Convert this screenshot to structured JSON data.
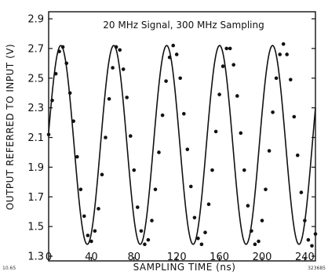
{
  "figure": {
    "corner_left": "10.65",
    "corner_right": "323685"
  },
  "chart_data": {
    "type": "scatter",
    "title": "20 MHz Signal,  300 MHz Sampling",
    "xlabel": "SAMPLING TIME    (ns)",
    "ylabel": "OUTPUT REFERRED TO INPUT    (V)",
    "xlim": [
      0,
      250
    ],
    "ylim": [
      1.3,
      2.95
    ],
    "xticks": [
      {
        "value": 0,
        "label": "0"
      },
      {
        "value": 40,
        "label": "40"
      },
      {
        "value": 80,
        "label": "80"
      },
      {
        "value": 120,
        "label": "120"
      },
      {
        "value": 160,
        "label": "160"
      },
      {
        "value": 200,
        "label": "200"
      },
      {
        "value": 240,
        "label": "240"
      }
    ],
    "yticks": [
      {
        "value": 1.3,
        "label": "1.3"
      },
      {
        "value": 1.5,
        "label": "1.5"
      },
      {
        "value": 1.7,
        "label": "1.7"
      },
      {
        "value": 1.9,
        "label": "1.9"
      },
      {
        "value": 2.1,
        "label": "2.1"
      },
      {
        "value": 2.3,
        "label": "2.3"
      },
      {
        "value": 2.5,
        "label": "2.5"
      },
      {
        "value": 2.7,
        "label": "2.7"
      },
      {
        "value": 2.9,
        "label": "2.9"
      }
    ],
    "fit_curve": {
      "kind": "sine",
      "offset_v": 2.05,
      "amplitude_v": 0.67,
      "period_ns": 49.6,
      "peak_time_ns": 11.4
    },
    "points": [
      {
        "x": 0.0,
        "y": 2.12
      },
      {
        "x": 3.3,
        "y": 2.35
      },
      {
        "x": 6.7,
        "y": 2.53
      },
      {
        "x": 10.0,
        "y": 2.68
      },
      {
        "x": 13.3,
        "y": 2.71
      },
      {
        "x": 16.7,
        "y": 2.6
      },
      {
        "x": 20.0,
        "y": 2.4
      },
      {
        "x": 23.3,
        "y": 2.21
      },
      {
        "x": 26.7,
        "y": 1.97
      },
      {
        "x": 30.0,
        "y": 1.75
      },
      {
        "x": 33.3,
        "y": 1.57
      },
      {
        "x": 36.7,
        "y": 1.44
      },
      {
        "x": 40.0,
        "y": 1.4
      },
      {
        "x": 43.3,
        "y": 1.47
      },
      {
        "x": 46.7,
        "y": 1.62
      },
      {
        "x": 50.0,
        "y": 1.85
      },
      {
        "x": 53.3,
        "y": 2.1
      },
      {
        "x": 56.7,
        "y": 2.36
      },
      {
        "x": 60.0,
        "y": 2.57
      },
      {
        "x": 63.3,
        "y": 2.71
      },
      {
        "x": 66.7,
        "y": 2.69
      },
      {
        "x": 70.0,
        "y": 2.56
      },
      {
        "x": 73.3,
        "y": 2.37
      },
      {
        "x": 76.7,
        "y": 2.11
      },
      {
        "x": 80.0,
        "y": 1.88
      },
      {
        "x": 83.3,
        "y": 1.63
      },
      {
        "x": 86.7,
        "y": 1.47
      },
      {
        "x": 90.0,
        "y": 1.38
      },
      {
        "x": 93.3,
        "y": 1.41
      },
      {
        "x": 96.7,
        "y": 1.54
      },
      {
        "x": 100.0,
        "y": 1.75
      },
      {
        "x": 103.3,
        "y": 2.0
      },
      {
        "x": 106.7,
        "y": 2.25
      },
      {
        "x": 110.0,
        "y": 2.48
      },
      {
        "x": 113.3,
        "y": 2.64
      },
      {
        "x": 116.7,
        "y": 2.72
      },
      {
        "x": 120.0,
        "y": 2.66
      },
      {
        "x": 123.3,
        "y": 2.5
      },
      {
        "x": 126.7,
        "y": 2.26
      },
      {
        "x": 130.0,
        "y": 2.02
      },
      {
        "x": 133.3,
        "y": 1.77
      },
      {
        "x": 136.7,
        "y": 1.56
      },
      {
        "x": 140.0,
        "y": 1.42
      },
      {
        "x": 143.3,
        "y": 1.38
      },
      {
        "x": 146.7,
        "y": 1.46
      },
      {
        "x": 150.0,
        "y": 1.65
      },
      {
        "x": 153.3,
        "y": 1.88
      },
      {
        "x": 156.7,
        "y": 2.14
      },
      {
        "x": 160.0,
        "y": 2.39
      },
      {
        "x": 163.3,
        "y": 2.58
      },
      {
        "x": 166.7,
        "y": 2.7
      },
      {
        "x": 170.0,
        "y": 2.7
      },
      {
        "x": 173.3,
        "y": 2.59
      },
      {
        "x": 176.7,
        "y": 2.38
      },
      {
        "x": 180.0,
        "y": 2.13
      },
      {
        "x": 183.3,
        "y": 1.88
      },
      {
        "x": 186.7,
        "y": 1.64
      },
      {
        "x": 190.0,
        "y": 1.47
      },
      {
        "x": 193.3,
        "y": 1.38
      },
      {
        "x": 196.7,
        "y": 1.4
      },
      {
        "x": 200.0,
        "y": 1.54
      },
      {
        "x": 203.3,
        "y": 1.75
      },
      {
        "x": 206.7,
        "y": 2.01
      },
      {
        "x": 210.0,
        "y": 2.27
      },
      {
        "x": 213.3,
        "y": 2.5
      },
      {
        "x": 216.7,
        "y": 2.66
      },
      {
        "x": 220.0,
        "y": 2.73
      },
      {
        "x": 223.3,
        "y": 2.66
      },
      {
        "x": 226.7,
        "y": 2.49
      },
      {
        "x": 230.0,
        "y": 2.24
      },
      {
        "x": 233.3,
        "y": 1.98
      },
      {
        "x": 236.7,
        "y": 1.73
      },
      {
        "x": 240.0,
        "y": 1.54
      },
      {
        "x": 243.3,
        "y": 1.41
      },
      {
        "x": 246.7,
        "y": 1.37
      },
      {
        "x": 250.0,
        "y": 1.45
      }
    ],
    "grid": false,
    "legend": "none",
    "colors": {
      "ink": "#111111",
      "background": "#ffffff"
    }
  }
}
